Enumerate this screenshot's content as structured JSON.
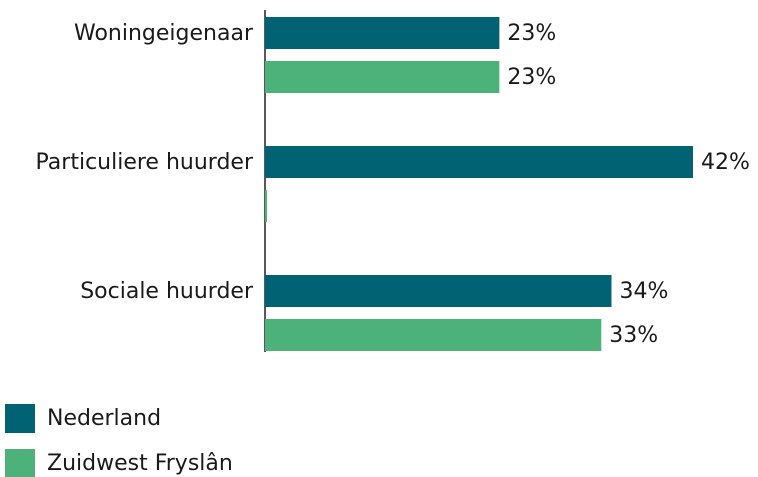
{
  "chart_data": {
    "type": "bar",
    "orientation": "horizontal",
    "categories": [
      "Woningeigenaar",
      "Particuliere huurder",
      "Sociale huurder"
    ],
    "series": [
      {
        "name": "Nederland",
        "color": "#006272",
        "values": [
          23,
          42,
          34
        ],
        "value_labels": [
          "23%",
          "42%",
          "34%"
        ]
      },
      {
        "name": "Zuidwest Fryslân",
        "color": "#4db27a",
        "values": [
          23,
          0.2,
          33
        ],
        "value_labels": [
          "23%",
          null,
          "33%"
        ]
      }
    ],
    "legend": "bottom-left"
  }
}
